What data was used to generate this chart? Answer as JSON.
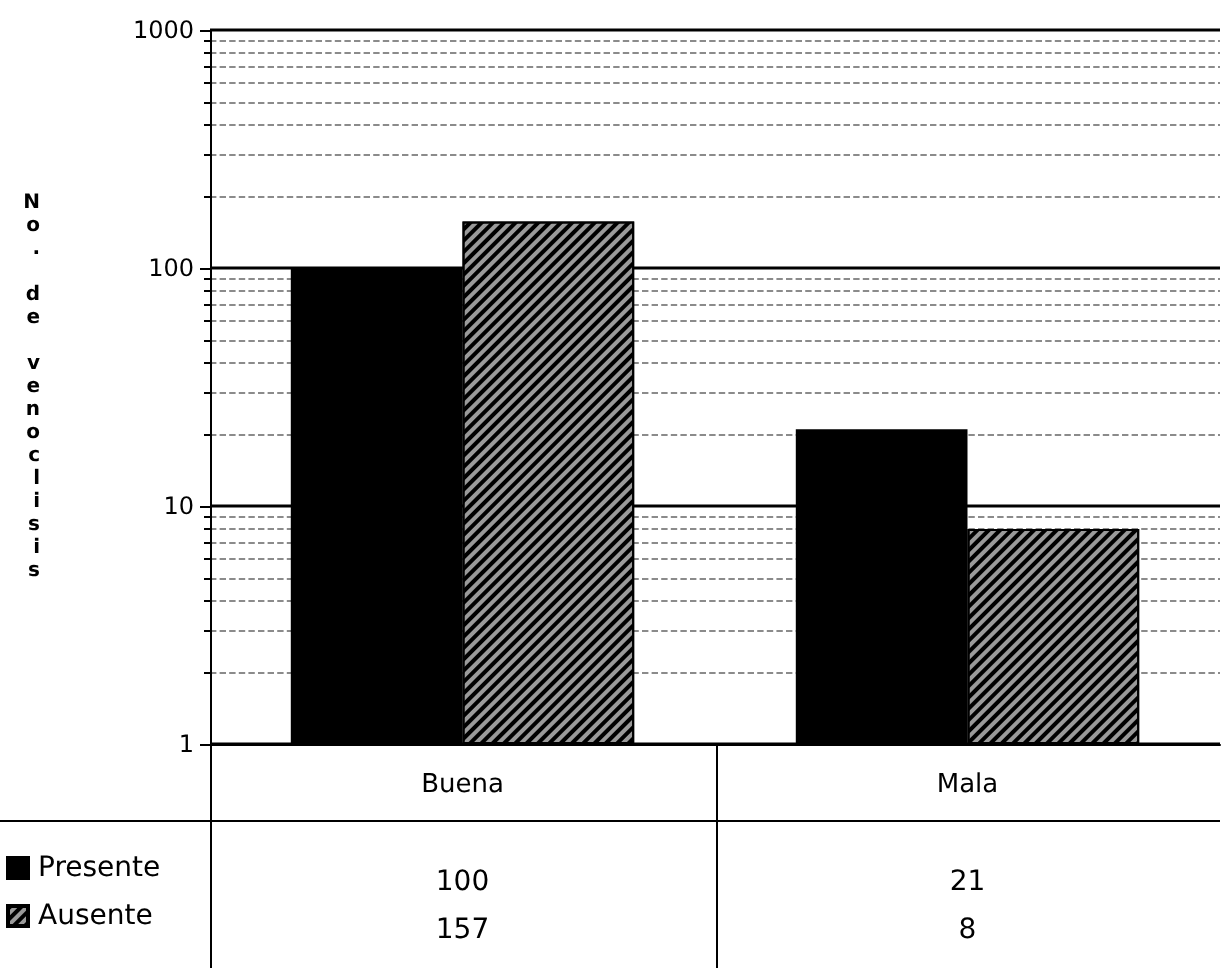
{
  "chart_data": {
    "type": "bar",
    "ylabel": "No. de venoclisis",
    "categories": [
      "Buena",
      "Mala"
    ],
    "series": [
      {
        "name": "Presente",
        "color": "#000000",
        "values": [
          100,
          21
        ]
      },
      {
        "name": "Ausente",
        "color": "#9a9a9a",
        "values": [
          157,
          8
        ]
      }
    ],
    "log": "y",
    "ylim": [
      1,
      1000
    ],
    "yticks": [
      1,
      10,
      100,
      1000
    ],
    "grid": "y",
    "legend": "bottom left",
    "data_labels": true
  }
}
